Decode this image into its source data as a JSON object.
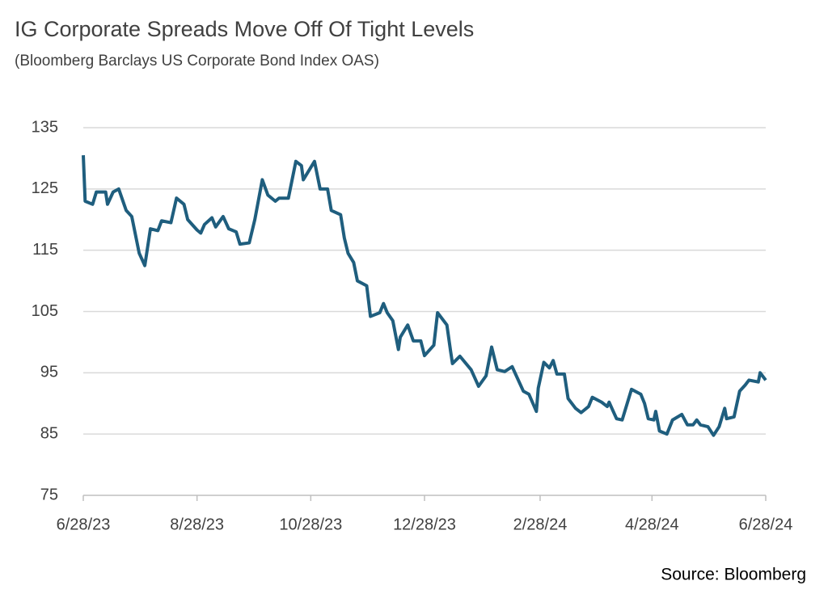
{
  "chart_data": {
    "type": "line",
    "title": "IG Corporate Spreads Move Off Of Tight Levels",
    "subtitle": "(Bloomberg Barclays US Corporate Bond Index OAS)",
    "source": "Source: Bloomberg",
    "series": [
      {
        "color": "#1f5e7e",
        "x": [
          "6/28/23",
          "6/29/23",
          "7/3/23",
          "7/5/23",
          "7/10/23",
          "7/11/23",
          "7/14/23",
          "7/17/23",
          "7/21/23",
          "7/24/23",
          "7/28/23",
          "7/31/23",
          "8/3/23",
          "8/7/23",
          "8/9/23",
          "8/14/23",
          "8/17/23",
          "8/21/23",
          "8/23/23",
          "8/28/23",
          "8/30/23",
          "9/1/23",
          "9/5/23",
          "9/7/23",
          "9/11/23",
          "9/14/23",
          "9/18/23",
          "9/20/23",
          "9/25/23",
          "9/28/23",
          "10/2/23",
          "10/5/23",
          "10/9/23",
          "10/11/23",
          "10/16/23",
          "10/20/23",
          "10/23/23",
          "10/24/23",
          "10/30/23",
          "11/2/23",
          "11/6/23",
          "11/8/23",
          "11/13/23",
          "11/15/23",
          "11/17/23",
          "11/20/23",
          "11/22/23",
          "11/27/23",
          "11/29/23",
          "12/4/23",
          "12/6/23",
          "12/8/23",
          "12/11/23",
          "12/14/23",
          "12/15/23",
          "12/19/23",
          "12/22/23",
          "12/26/23",
          "12/28/23",
          "1/2/24",
          "1/4/24",
          "1/9/24",
          "1/11/24",
          "1/12/24",
          "1/16/24",
          "1/22/24",
          "1/26/24",
          "1/30/24",
          "2/2/24",
          "2/5/24",
          "2/9/24",
          "2/13/24",
          "2/19/24",
          "2/22/24",
          "2/26/24",
          "2/27/24",
          "3/1/24",
          "3/4/24",
          "3/6/24",
          "3/8/24",
          "3/12/24",
          "3/14/24",
          "3/18/24",
          "3/21/24",
          "3/25/24",
          "3/27/24",
          "4/1/24",
          "4/4/24",
          "4/5/24",
          "4/9/24",
          "4/12/24",
          "4/17/24",
          "4/22/24",
          "4/24/24",
          "4/26/24",
          "4/29/24",
          "4/30/24",
          "5/2/24",
          "5/6/24",
          "5/9/24",
          "5/14/24",
          "5/17/24",
          "5/20/24",
          "5/22/24",
          "5/24/24",
          "5/28/24",
          "5/31/24",
          "6/3/24",
          "6/6/24",
          "6/7/24",
          "6/11/24",
          "6/14/24",
          "6/17/24",
          "6/19/24",
          "6/24/24",
          "6/25/24",
          "6/28/24"
        ],
        "values": [
          130.5,
          123,
          122.5,
          124.5,
          124.5,
          122.5,
          124.5,
          125,
          121.5,
          120.5,
          114.5,
          112.5,
          118.5,
          118.2,
          119.8,
          119.5,
          123.5,
          122.5,
          120,
          118.3,
          117.8,
          119.2,
          120.3,
          118.8,
          120.5,
          118.5,
          118,
          116,
          116.2,
          120,
          126.5,
          124,
          123,
          123.5,
          123.5,
          129.5,
          128.8,
          126.5,
          129.5,
          125,
          125,
          121.5,
          120.8,
          117,
          114.5,
          113,
          110,
          109.2,
          104.2,
          104.8,
          106.3,
          104.8,
          103.5,
          98.8,
          100.8,
          102.8,
          100.2,
          100.2,
          97.8,
          99.5,
          104.8,
          102.8,
          98.5,
          96.5,
          97.7,
          95.5,
          92.8,
          94.5,
          99.2,
          95.5,
          95.2,
          96,
          92,
          91.5,
          88.7,
          92.5,
          96.7,
          95.8,
          97,
          94.8,
          94.8,
          90.8,
          89.2,
          88.5,
          89.5,
          91,
          90.2,
          89.5,
          90.2,
          87.5,
          87.3,
          92.3,
          91.5,
          90,
          87.5,
          87.3,
          88.7,
          85.5,
          85,
          87.3,
          88.2,
          86.5,
          86.5,
          87.3,
          86.5,
          86.2,
          84.8,
          86.2,
          89.2,
          87.5,
          87.8,
          92,
          93,
          93.8,
          93.5,
          95,
          93.8
        ]
      }
    ],
    "xlim": [
      "6/28/23",
      "6/28/24"
    ],
    "xticks": [
      "6/28/23",
      "8/28/23",
      "10/28/23",
      "12/28/23",
      "2/28/24",
      "4/28/24",
      "6/28/24"
    ],
    "ylim": [
      75,
      135
    ],
    "yticks": [
      75,
      85,
      95,
      105,
      115,
      125,
      135
    ],
    "grid": true
  }
}
